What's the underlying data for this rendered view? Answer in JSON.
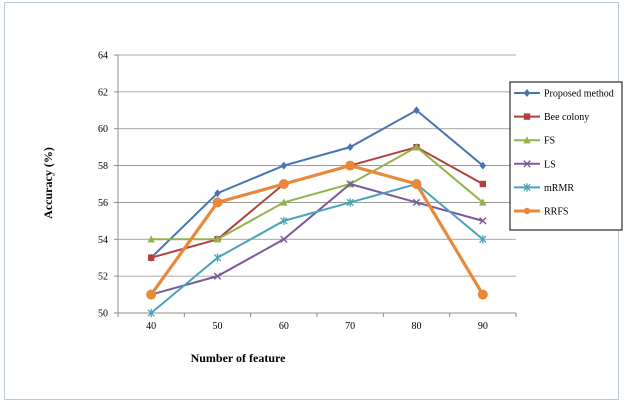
{
  "chart_data": {
    "type": "line",
    "title": "",
    "xlabel": "Number of feature",
    "ylabel": "Accuracy (%)",
    "x": [
      40,
      50,
      60,
      70,
      80,
      90
    ],
    "xticks": [
      "40",
      "50",
      "60",
      "70",
      "80",
      "90"
    ],
    "ylim": [
      50,
      64
    ],
    "yticks": [
      "50",
      "52",
      "54",
      "56",
      "58",
      "60",
      "62",
      "64"
    ],
    "grid": "horizontal",
    "legend_position": "right",
    "series": [
      {
        "name": "Proposed method",
        "color": "#4a74b0",
        "marker": "diamond",
        "values": [
          53,
          56.5,
          58,
          59,
          61,
          58
        ]
      },
      {
        "name": "Bee colony",
        "color": "#b0413e",
        "marker": "square",
        "values": [
          53,
          54,
          57,
          58,
          59,
          57
        ]
      },
      {
        "name": "FS",
        "color": "#93b44b",
        "marker": "triangle",
        "values": [
          54,
          54,
          56,
          57,
          59,
          56
        ]
      },
      {
        "name": "LS",
        "color": "#7a5a9c",
        "marker": "x",
        "values": [
          51,
          52,
          54,
          57,
          56,
          55
        ]
      },
      {
        "name": "mRMR",
        "color": "#4ba3b9",
        "marker": "star",
        "values": [
          50,
          53,
          55,
          56,
          57,
          54
        ]
      },
      {
        "name": "RRFS",
        "color": "#e8883a",
        "marker": "circle",
        "values": [
          51,
          56,
          57,
          58,
          57,
          51
        ]
      }
    ]
  }
}
